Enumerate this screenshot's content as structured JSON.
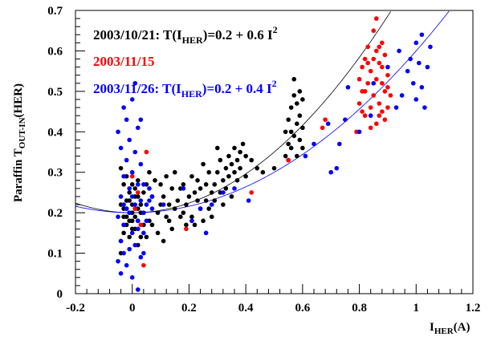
{
  "chart_data": {
    "type": "scatter",
    "xlabel_main": "I",
    "xlabel_sub": "HER",
    "xlabel_tail": "(A)",
    "ylabel_main": "Paraffin T",
    "ylabel_sub": "OUT-IN",
    "ylabel_tail": "(HER)",
    "xlim": [
      -0.2,
      1.2
    ],
    "ylim": [
      0,
      0.7
    ],
    "xticks": [
      -0.2,
      0,
      0.2,
      0.4,
      0.6,
      0.8,
      1,
      1.2
    ],
    "xtick_labels": [
      "-0.2",
      "0",
      "0.2",
      "0.4",
      "0.6",
      "0.8",
      "1",
      "1.2"
    ],
    "yticks": [
      0,
      0.1,
      0.2,
      0.3,
      0.4,
      0.5,
      0.6,
      0.7
    ],
    "ytick_labels": [
      "0",
      "0.1",
      "0.2",
      "0.3",
      "0.4",
      "0.5",
      "0.6",
      "0.7"
    ],
    "legend": [
      {
        "main": "2003/10/21: T(I",
        "sub": "HER",
        "tail": ")=0.2 + 0.6 I",
        "sup": "2",
        "color": "#000000"
      },
      {
        "main": "2003/11/15",
        "sub": "",
        "tail": "",
        "sup": "",
        "color": "#ff0000"
      },
      {
        "main": "2003/11/26: T(I",
        "sub": "HER",
        "tail": ")=0.2 + 0.4 I",
        "sup": "2",
        "color": "#0000ff"
      }
    ],
    "fits": [
      {
        "a": 0.2,
        "b": 0.6,
        "color": "#000000"
      },
      {
        "a": 0.2,
        "b": 0.4,
        "color": "#0000ff"
      }
    ],
    "series": [
      {
        "color": "#000000",
        "points": [
          [
            -0.04,
            0.1
          ],
          [
            -0.04,
            0.13
          ],
          [
            -0.03,
            0.15
          ],
          [
            -0.03,
            0.17
          ],
          [
            -0.02,
            0.19
          ],
          [
            -0.02,
            0.21
          ],
          [
            -0.01,
            0.23
          ],
          [
            -0.01,
            0.25
          ],
          [
            -0.03,
            0.27
          ],
          [
            -0.02,
            0.29
          ],
          [
            -0.04,
            0.31
          ],
          [
            -0.01,
            0.14
          ],
          [
            0.0,
            0.18
          ],
          [
            0.0,
            0.2
          ],
          [
            0.0,
            0.22
          ],
          [
            0.01,
            0.16
          ],
          [
            0.01,
            0.24
          ],
          [
            0.01,
            0.26
          ],
          [
            0.02,
            0.12
          ],
          [
            0.02,
            0.18
          ],
          [
            0.02,
            0.28
          ],
          [
            0.03,
            0.2
          ],
          [
            0.03,
            0.22
          ],
          [
            0.04,
            0.17
          ],
          [
            0.04,
            0.25
          ],
          [
            -0.03,
            0.19
          ],
          [
            -0.01,
            0.2
          ],
          [
            0.0,
            0.16
          ],
          [
            0.02,
            0.21
          ],
          [
            -0.02,
            0.23
          ],
          [
            0.03,
            0.14
          ],
          [
            -0.04,
            0.22
          ],
          [
            0.01,
            0.19
          ],
          [
            -0.02,
            0.17
          ],
          [
            0.0,
            0.27
          ],
          [
            0.02,
            0.24
          ],
          [
            -0.03,
            0.21
          ],
          [
            0.04,
            0.2
          ],
          [
            -0.01,
            0.18
          ],
          [
            0.01,
            0.21
          ],
          [
            0.05,
            0.14
          ],
          [
            0.05,
            0.27
          ],
          [
            0.06,
            0.18
          ],
          [
            0.06,
            0.3
          ],
          [
            0.07,
            0.17
          ],
          [
            0.07,
            0.24
          ],
          [
            0.08,
            0.28
          ],
          [
            0.09,
            0.15
          ],
          [
            0.09,
            0.2
          ],
          [
            0.1,
            0.22
          ],
          [
            0.1,
            0.27
          ],
          [
            0.11,
            0.13
          ],
          [
            0.11,
            0.24
          ],
          [
            0.12,
            0.19
          ],
          [
            0.12,
            0.29
          ],
          [
            0.13,
            0.22
          ],
          [
            0.13,
            0.18
          ],
          [
            0.14,
            0.26
          ],
          [
            0.14,
            0.16
          ],
          [
            0.15,
            0.21
          ],
          [
            0.15,
            0.3
          ],
          [
            0.16,
            0.23
          ],
          [
            0.17,
            0.19
          ],
          [
            0.17,
            0.26
          ],
          [
            0.18,
            0.2
          ],
          [
            0.18,
            0.27
          ],
          [
            0.19,
            0.22
          ],
          [
            0.19,
            0.17
          ],
          [
            0.2,
            0.24
          ],
          [
            0.21,
            0.19
          ],
          [
            0.21,
            0.29
          ],
          [
            0.22,
            0.25
          ],
          [
            0.22,
            0.17
          ],
          [
            0.23,
            0.23
          ],
          [
            0.23,
            0.28
          ],
          [
            0.24,
            0.21
          ],
          [
            0.24,
            0.26
          ],
          [
            0.25,
            0.18
          ],
          [
            0.25,
            0.32
          ],
          [
            0.26,
            0.23
          ],
          [
            0.26,
            0.27
          ],
          [
            0.27,
            0.21
          ],
          [
            0.27,
            0.3
          ],
          [
            0.28,
            0.25
          ],
          [
            0.28,
            0.19
          ],
          [
            0.29,
            0.27
          ],
          [
            0.29,
            0.23
          ],
          [
            0.3,
            0.3
          ],
          [
            0.3,
            0.36
          ],
          [
            0.31,
            0.25
          ],
          [
            0.31,
            0.33
          ],
          [
            0.32,
            0.28
          ],
          [
            0.32,
            0.22
          ],
          [
            0.33,
            0.31
          ],
          [
            0.33,
            0.26
          ],
          [
            0.34,
            0.34
          ],
          [
            0.34,
            0.29
          ],
          [
            0.35,
            0.32
          ],
          [
            0.35,
            0.24
          ],
          [
            0.36,
            0.36
          ],
          [
            0.36,
            0.3
          ],
          [
            0.37,
            0.33
          ],
          [
            0.37,
            0.28
          ],
          [
            0.38,
            0.35
          ],
          [
            0.38,
            0.31
          ],
          [
            0.39,
            0.37
          ],
          [
            0.4,
            0.29
          ],
          [
            0.4,
            0.34
          ],
          [
            0.42,
            0.33
          ],
          [
            0.44,
            0.31
          ],
          [
            0.46,
            0.3
          ],
          [
            0.5,
            0.31
          ],
          [
            0.54,
            0.34
          ],
          [
            0.54,
            0.4
          ],
          [
            0.55,
            0.37
          ],
          [
            0.55,
            0.43
          ],
          [
            0.56,
            0.36
          ],
          [
            0.56,
            0.46
          ],
          [
            0.57,
            0.39
          ],
          [
            0.57,
            0.49
          ],
          [
            0.57,
            0.53
          ],
          [
            0.58,
            0.34
          ],
          [
            0.58,
            0.42
          ],
          [
            0.58,
            0.47
          ],
          [
            0.59,
            0.38
          ],
          [
            0.59,
            0.44
          ],
          [
            0.59,
            0.5
          ],
          [
            0.6,
            0.36
          ],
          [
            0.6,
            0.41
          ],
          [
            0.6,
            0.48
          ],
          [
            0.56,
            0.4
          ],
          [
            0.55,
            0.33
          ]
        ]
      },
      {
        "color": "#ff0000",
        "points": [
          [
            0.0,
            0.29
          ],
          [
            0.01,
            0.21
          ],
          [
            0.02,
            0.25
          ],
          [
            0.03,
            0.17
          ],
          [
            0.04,
            0.07
          ],
          [
            0.05,
            0.35
          ],
          [
            0.19,
            0.16
          ],
          [
            0.42,
            0.25
          ],
          [
            0.55,
            0.33
          ],
          [
            0.67,
            0.41
          ],
          [
            0.68,
            0.43
          ],
          [
            0.79,
            0.4
          ],
          [
            0.8,
            0.47
          ],
          [
            0.8,
            0.53
          ],
          [
            0.81,
            0.56
          ],
          [
            0.81,
            0.5
          ],
          [
            0.82,
            0.44
          ],
          [
            0.82,
            0.58
          ],
          [
            0.83,
            0.52
          ],
          [
            0.83,
            0.61
          ],
          [
            0.84,
            0.46
          ],
          [
            0.84,
            0.55
          ],
          [
            0.85,
            0.49
          ],
          [
            0.85,
            0.65
          ],
          [
            0.85,
            0.58
          ],
          [
            0.86,
            0.42
          ],
          [
            0.86,
            0.53
          ],
          [
            0.86,
            0.68
          ],
          [
            0.87,
            0.47
          ],
          [
            0.87,
            0.57
          ],
          [
            0.87,
            0.61
          ],
          [
            0.88,
            0.45
          ],
          [
            0.88,
            0.52
          ],
          [
            0.88,
            0.56
          ],
          [
            0.89,
            0.43
          ],
          [
            0.89,
            0.5
          ],
          [
            0.89,
            0.59
          ],
          [
            0.9,
            0.46
          ],
          [
            0.9,
            0.54
          ],
          [
            0.91,
            0.49
          ],
          [
            0.84,
            0.41
          ],
          [
            0.83,
            0.57
          ],
          [
            0.82,
            0.5
          ],
          [
            0.86,
            0.6
          ],
          [
            0.88,
            0.62
          ],
          [
            0.9,
            0.51
          ],
          [
            0.81,
            0.45
          ],
          [
            0.87,
            0.44
          ]
        ]
      },
      {
        "color": "#0000ff",
        "points": [
          [
            -0.05,
            0.08
          ],
          [
            -0.05,
            0.19
          ],
          [
            -0.05,
            0.4
          ],
          [
            -0.04,
            0.05
          ],
          [
            -0.04,
            0.13
          ],
          [
            -0.04,
            0.24
          ],
          [
            -0.04,
            0.36
          ],
          [
            -0.03,
            0.1
          ],
          [
            -0.03,
            0.17
          ],
          [
            -0.03,
            0.29
          ],
          [
            -0.03,
            0.46
          ],
          [
            -0.02,
            0.07
          ],
          [
            -0.02,
            0.21
          ],
          [
            -0.02,
            0.33
          ],
          [
            -0.02,
            0.43
          ],
          [
            -0.01,
            0.11
          ],
          [
            -0.01,
            0.26
          ],
          [
            -0.01,
            0.38
          ],
          [
            0.0,
            0.04
          ],
          [
            0.0,
            0.15
          ],
          [
            0.0,
            0.3
          ],
          [
            0.0,
            0.48
          ],
          [
            0.01,
            0.12
          ],
          [
            0.01,
            0.22
          ],
          [
            0.01,
            0.35
          ],
          [
            0.01,
            0.52
          ],
          [
            0.02,
            0.01
          ],
          [
            0.02,
            0.18
          ],
          [
            0.02,
            0.27
          ],
          [
            0.02,
            0.41
          ],
          [
            0.03,
            0.09
          ],
          [
            0.03,
            0.23
          ],
          [
            0.03,
            0.32
          ],
          [
            0.03,
            0.43
          ],
          [
            0.04,
            0.2
          ],
          [
            0.04,
            0.27
          ],
          [
            0.04,
            0.1
          ],
          [
            0.05,
            0.22
          ],
          [
            0.05,
            0.18
          ],
          [
            0.06,
            0.23
          ],
          [
            0.06,
            0.26
          ],
          [
            0.07,
            0.21
          ],
          [
            0.07,
            0.24
          ],
          [
            -0.01,
            0.2
          ],
          [
            0.02,
            0.16
          ],
          [
            -0.03,
            0.22
          ],
          [
            0.0,
            0.24
          ],
          [
            0.04,
            0.15
          ],
          [
            0.11,
            0.22
          ],
          [
            0.18,
            0.26
          ],
          [
            0.21,
            0.18
          ],
          [
            0.24,
            0.21
          ],
          [
            0.26,
            0.15
          ],
          [
            0.28,
            0.22
          ],
          [
            0.32,
            0.25
          ],
          [
            0.36,
            0.26
          ],
          [
            0.41,
            0.23
          ],
          [
            0.61,
            0.34
          ],
          [
            0.64,
            0.37
          ],
          [
            0.69,
            0.42
          ],
          [
            0.7,
            0.3
          ],
          [
            0.72,
            0.31
          ],
          [
            0.73,
            0.37
          ],
          [
            0.75,
            0.43
          ],
          [
            0.76,
            0.51
          ],
          [
            0.8,
            0.4
          ],
          [
            0.84,
            0.44
          ],
          [
            0.85,
            0.52
          ],
          [
            0.9,
            0.56
          ],
          [
            0.93,
            0.46
          ],
          [
            0.95,
            0.49
          ],
          [
            0.97,
            0.55
          ],
          [
            0.98,
            0.58
          ],
          [
            0.99,
            0.52
          ],
          [
            1.0,
            0.62
          ],
          [
            1.0,
            0.48
          ],
          [
            1.01,
            0.57
          ],
          [
            1.02,
            0.64
          ],
          [
            1.02,
            0.51
          ],
          [
            1.03,
            0.46
          ],
          [
            1.04,
            0.56
          ],
          [
            1.05,
            0.61
          ],
          [
            0.94,
            0.6
          ]
        ]
      }
    ]
  }
}
